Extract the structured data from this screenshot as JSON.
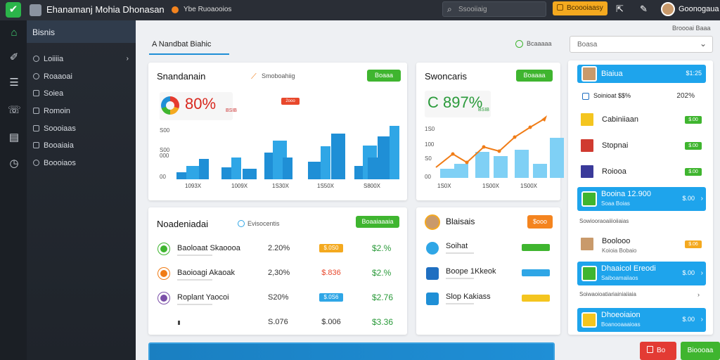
{
  "app": {
    "title": "Ehanamanj Mohia Dhonasan",
    "tab_label": "Ybe Ruoaooios"
  },
  "search": {
    "placeholder": "Ssooiiaig"
  },
  "header": {
    "upgrade_label": "Bcoooiaasy",
    "user_name": "Goonogaua"
  },
  "sidebar": {
    "brand": "Bisnis",
    "items": [
      {
        "label": "Loiiiia",
        "icon": "search-icon"
      },
      {
        "label": "Roaaoai",
        "icon": "search-icon"
      },
      {
        "label": "Soiea",
        "icon": "grid-icon"
      },
      {
        "label": "Romoin",
        "icon": "list-icon"
      },
      {
        "label": "Soooiaas",
        "icon": "square-icon"
      },
      {
        "label": "Booaiaia",
        "icon": "check-square-icon"
      },
      {
        "label": "Boooiaos",
        "icon": "circle-icon"
      }
    ]
  },
  "tab": {
    "label": "A Nandbat Biahic",
    "action": "Bcaaaaa"
  },
  "dropdown": {
    "value": "Boasa"
  },
  "top_link": "Broooai Baaa",
  "card1": {
    "title": "Snandanain",
    "badge": "Smoboahiig",
    "button": "Boaaa",
    "stat": "80%",
    "stat_sub": "BSIB",
    "flag": "2ooo"
  },
  "card2": {
    "title": "Swoncaris",
    "button": "Boaaaa",
    "stat": "C 897%",
    "stat_sub": "BSIB"
  },
  "chart_data": [
    {
      "type": "bar",
      "title": "",
      "y_ticks": [
        "S00",
        "S00",
        "000",
        "00"
      ],
      "x_labels": [
        "1093X",
        "1009X",
        "1S30X",
        "1S50X",
        "S800X"
      ],
      "values": [
        10,
        18,
        28,
        16,
        30,
        14,
        36,
        52,
        30,
        24,
        45,
        62,
        18,
        46,
        30,
        58,
        72
      ]
    },
    {
      "type": "bar",
      "title": "",
      "y_ticks": [
        "1S0",
        "100",
        "S0",
        "00"
      ],
      "x_labels": [
        "1S0X",
        "1S00X",
        "1S00X"
      ],
      "values": [
        12,
        18,
        34,
        28,
        36,
        18,
        52
      ],
      "line": [
        15,
        34,
        22,
        44,
        38,
        58,
        72,
        85
      ]
    }
  ],
  "card3": {
    "title": "Noadeniadai",
    "badge": "Evisocentis",
    "button": "Boaaiaaaia",
    "rows": [
      {
        "name": "Baoloaat Skaoooa",
        "pct": "2.20%",
        "pill": "$.0S0",
        "pill_color": "#f4a91f",
        "val": "$2.%",
        "icon_color": "#3fb52f"
      },
      {
        "name": "Baoioagi Akaoak",
        "pct": "2,30%",
        "pill": "$.836",
        "pill_color": "#ffffff",
        "val": "$2.%",
        "icon_color": "#f07c16"
      },
      {
        "name": "Roplant Yaocoi",
        "pct": "S20%",
        "pill": "$.0S6",
        "pill_color": "#2fa6e6",
        "val": "$2.76",
        "icon_color": "#7b4fa8"
      },
      {
        "name": "",
        "pct": "S.076",
        "pill": "$.006",
        "pill_color": "#ffffff",
        "val": "$3.36",
        "icon_color": ""
      }
    ]
  },
  "card4": {
    "title": "Blaisais",
    "button": "$ooo",
    "rows": [
      {
        "name": "Soihat",
        "pill": "#3fb52f"
      },
      {
        "name": "Boope 1Kkeok",
        "pill": "#2fa6e6"
      },
      {
        "name": "Slop Kakiass",
        "pill": "#f4c51f"
      }
    ]
  },
  "right_panel": {
    "rows": [
      {
        "name": "Biaiua",
        "val": "$1:25",
        "type": "highlight"
      },
      {
        "name": "Soinioat $$%",
        "val": "202%",
        "type": "sub"
      },
      {
        "name": "Cabiniiaan",
        "val": "$.00",
        "type": "item"
      },
      {
        "name": "Stopnai",
        "val": "$.00",
        "type": "item"
      },
      {
        "name": "Roiooa",
        "val": "$.00",
        "type": "item"
      },
      {
        "name": "Booina 12.900",
        "sub": "Soaa Boias",
        "val": "$.00",
        "type": "highlight"
      },
      {
        "name": "Sowiooraoaiiioiiaias",
        "type": "label"
      },
      {
        "name": "Boolooo",
        "sub": "Koioia Bobaio",
        "val": "$.06",
        "type": "item"
      },
      {
        "name": "Dhaaicol Ereodi",
        "sub": "Saiboamaiiaos",
        "val": "$.00",
        "type": "highlight"
      },
      {
        "name": "Soiwaoioatiariainiaiiaia",
        "type": "label"
      },
      {
        "name": "Dhoeoiaion",
        "sub": "Boanooaaaioas",
        "val": "$.00",
        "type": "highlight"
      }
    ]
  },
  "footer": {
    "cancel": "Bo",
    "confirm": "Bioooaa"
  }
}
